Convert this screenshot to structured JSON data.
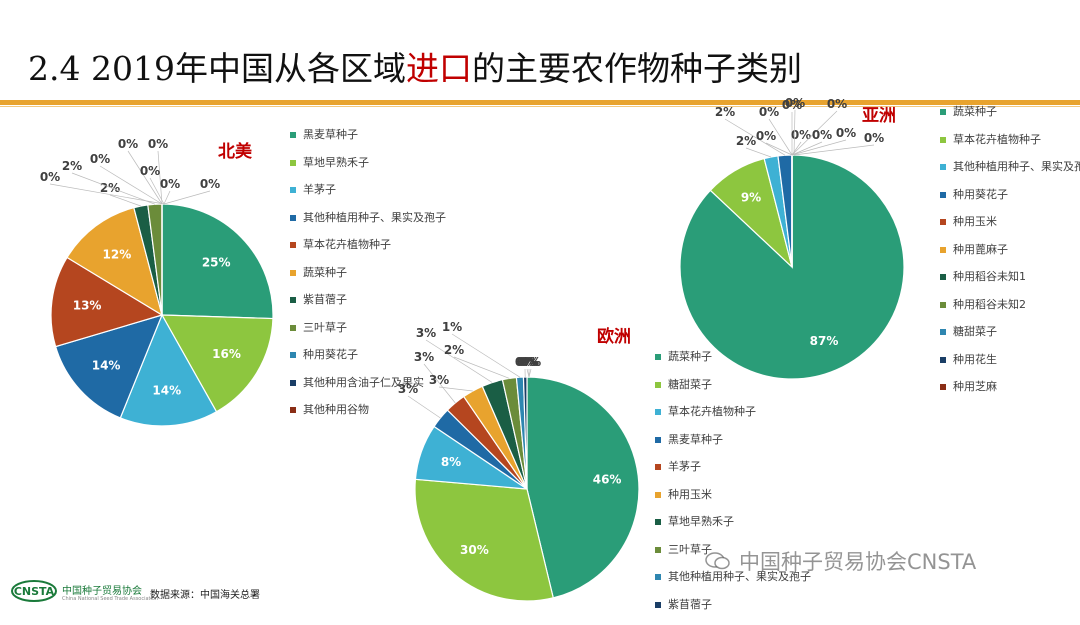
{
  "title": {
    "prefix": "2.4 2019年中国从各区域",
    "highlight": "进口",
    "suffix": "的主要农作物种子类别"
  },
  "chart_data": [
    {
      "type": "pie",
      "title": "北美",
      "categories": [
        "黑麦草种子",
        "草地早熟禾子",
        "羊茅子",
        "其他种植用种子、果实及孢子",
        "草本花卉植物种子",
        "蔬菜种子",
        "紫苜蓿子",
        "三叶草子",
        "种用葵花子",
        "其他种用含油子仁及果实",
        "其他种用谷物"
      ],
      "values": [
        25,
        16,
        14,
        14,
        13,
        12,
        2,
        2,
        0,
        0,
        0
      ],
      "data_labels": [
        "25%",
        "16%",
        "14%",
        "14%",
        "13%",
        "12%",
        "2%",
        "2%",
        "0%",
        "0%",
        "0%"
      ],
      "extra_labels": [
        "0%",
        "0%",
        "0%",
        "0%",
        "0%"
      ],
      "colors": [
        "#2a9d78",
        "#8dc63f",
        "#3eb1d4",
        "#1f6aa5",
        "#b5461f",
        "#e8a32e",
        "#1a5e45",
        "#6b8c3a",
        "#2e86b0",
        "#1a3e66",
        "#8a2e16"
      ],
      "legend": "right"
    },
    {
      "type": "pie",
      "title": "欧洲",
      "categories": [
        "蔬菜种子",
        "糖甜菜子",
        "草本花卉植物种子",
        "黑麦草种子",
        "羊茅子",
        "种用玉米",
        "草地早熟禾子",
        "三叶草子",
        "其他种植用种子、果实及孢子",
        "紫苜蓿子"
      ],
      "values": [
        46,
        30,
        8,
        3,
        3,
        3,
        3,
        2,
        1,
        0.5
      ],
      "data_labels": [
        "46%",
        "30%",
        "8%",
        "3%",
        "3%",
        "3%",
        "3%",
        "2%",
        "1%",
        "0%"
      ],
      "extra_labels": [
        "0%",
        "0%",
        "0%"
      ],
      "colors": [
        "#2a9d78",
        "#8dc63f",
        "#3eb1d4",
        "#1f6aa5",
        "#b5461f",
        "#e8a32e",
        "#1a5e45",
        "#6b8c3a",
        "#2e86b0",
        "#1a3e66"
      ],
      "legend": "right"
    },
    {
      "type": "pie",
      "title": "亚洲",
      "categories": [
        "蔬菜种子",
        "草本花卉植物种子",
        "其他种植用种子、果实及孢子",
        "种用葵花子",
        "种用玉米",
        "种用蓖麻子",
        "种用稻谷未知1",
        "种用稻谷未知2",
        "糖甜菜子",
        "种用花生",
        "种用芝麻"
      ],
      "values": [
        87,
        9,
        2,
        2,
        0,
        0,
        0,
        0,
        0,
        0,
        0
      ],
      "data_labels": [
        "87%",
        "9%",
        "2%",
        "2%",
        "0%",
        "0%",
        "0%",
        "0%",
        "0%",
        "0%",
        "0%"
      ],
      "extra_labels": [
        "0%",
        "0%"
      ],
      "colors": [
        "#2a9d78",
        "#8dc63f",
        "#3eb1d4",
        "#1f6aa5",
        "#b5461f",
        "#e8a32e",
        "#1a5e45",
        "#6b8c3a",
        "#2e86b0",
        "#1a3e66",
        "#8a2e16"
      ],
      "legend": "right"
    }
  ],
  "footer": {
    "org": "中国种子贸易协会",
    "org_en": "China National Seed Trade Association",
    "logo_text": "CNSTA",
    "source": "数据来源：中国海关总署",
    "watermark": "中国种子贸易协会CNSTA"
  }
}
